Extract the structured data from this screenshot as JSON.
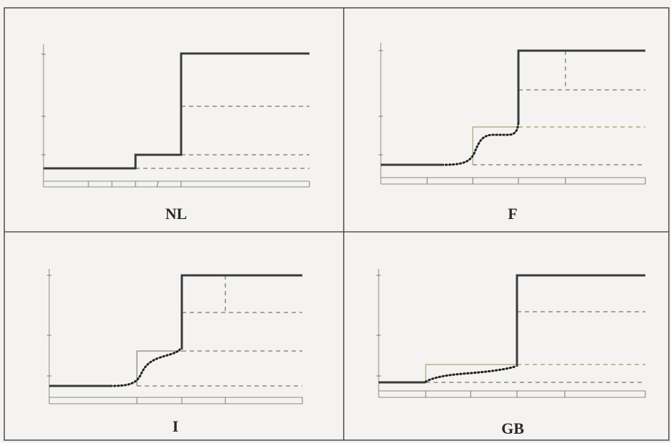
{
  "panels": [
    {
      "id": "nl",
      "label": "NL"
    },
    {
      "id": "f",
      "label": "F"
    },
    {
      "id": "i",
      "label": "I"
    },
    {
      "id": "gb",
      "label": "GB"
    }
  ]
}
